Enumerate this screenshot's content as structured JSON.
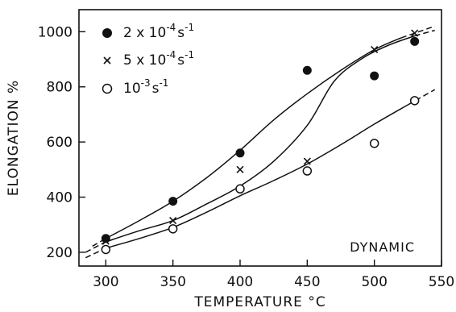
{
  "chart_data": {
    "type": "scatter",
    "xlabel": "TEMPERATURE °C",
    "ylabel": "ELONGATION %",
    "xlim": [
      280,
      550
    ],
    "ylim": [
      150,
      1080
    ],
    "xticks": [
      300,
      350,
      400,
      450,
      500,
      550
    ],
    "yticks": [
      200,
      400,
      600,
      800,
      1000
    ],
    "annotation": "DYNAMIC",
    "legend_position": "top-left",
    "series": [
      {
        "name_base": "2 x 10",
        "name_exp": "-4",
        "name_unit_base": "s",
        "name_unit_exp": "-1",
        "marker": "filled-circle",
        "x": [
          300,
          350,
          400,
          450,
          500,
          530
        ],
        "y": [
          250,
          385,
          560,
          860,
          840,
          965
        ],
        "curve_x": [
          290,
          300,
          325,
          350,
          375,
          400,
          425,
          450,
          475,
          500,
          520,
          545
        ],
        "curve_y": [
          222,
          250,
          315,
          385,
          470,
          570,
          680,
          775,
          860,
          935,
          978,
          1020
        ]
      },
      {
        "name_base": "5 x 10",
        "name_exp": "-4",
        "name_unit_base": "s",
        "name_unit_exp": "-1",
        "marker": "cross",
        "x": [
          300,
          350,
          400,
          450,
          500,
          530
        ],
        "y": [
          240,
          315,
          500,
          530,
          935,
          995
        ],
        "curve_x": [
          285,
          300,
          325,
          350,
          375,
          400,
          425,
          450,
          470,
          490,
          510,
          530,
          545
        ],
        "curve_y": [
          200,
          238,
          278,
          315,
          375,
          440,
          530,
          660,
          820,
          900,
          950,
          985,
          1005
        ]
      },
      {
        "name_base": "10",
        "name_exp": "-3",
        "name_unit_base": "s",
        "name_unit_exp": "-1",
        "marker": "open-circle",
        "x": [
          300,
          350,
          400,
          450,
          500,
          530
        ],
        "y": [
          210,
          285,
          430,
          495,
          595,
          750
        ],
        "curve_x": [
          285,
          300,
          325,
          350,
          375,
          400,
          425,
          450,
          475,
          500,
          525,
          545
        ],
        "curve_y": [
          180,
          215,
          250,
          290,
          345,
          405,
          460,
          520,
          590,
          665,
          735,
          790
        ]
      }
    ]
  }
}
